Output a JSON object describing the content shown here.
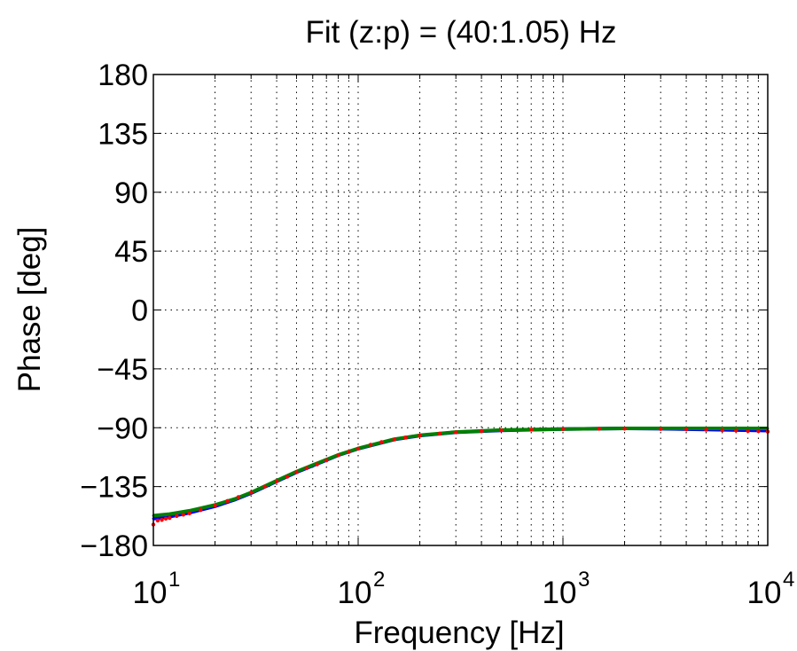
{
  "chart_data": {
    "type": "line",
    "title": "Fit (z:p) = (40:1.05) Hz",
    "xlabel": "Frequency [Hz]",
    "ylabel": "Phase [deg]",
    "xscale": "log",
    "xlim": [
      10,
      10000
    ],
    "ylim": [
      -180,
      180
    ],
    "grid": true,
    "yticks": [
      180,
      135,
      90,
      45,
      0,
      -45,
      -90,
      -135,
      -180
    ],
    "ytick_labels": [
      "180",
      "135",
      "90",
      "45",
      "0",
      "−45",
      "−90",
      "−135",
      "−180"
    ],
    "xticks": [
      {
        "base": "10",
        "exp": "1",
        "value": 10
      },
      {
        "base": "10",
        "exp": "2",
        "value": 100
      },
      {
        "base": "10",
        "exp": "3",
        "value": 1000
      },
      {
        "base": "10",
        "exp": "4",
        "value": 10000
      }
    ],
    "series": [
      {
        "color": "#0000ff",
        "style": "line",
        "x": [
          10,
          12,
          15,
          20,
          25,
          30,
          40,
          50,
          60,
          80,
          100,
          150,
          200,
          300,
          500,
          1000,
          2000,
          3000,
          5000,
          7000,
          10000
        ],
        "y": [
          -159.5,
          -158,
          -155,
          -150,
          -145,
          -140,
          -131,
          -124,
          -119,
          -111,
          -106,
          -99,
          -96,
          -93.5,
          -92,
          -91,
          -90.5,
          -90.8,
          -91.3,
          -91.8,
          -92.2
        ]
      },
      {
        "color": "#008000",
        "style": "line",
        "x": [
          10,
          12,
          15,
          20,
          25,
          30,
          40,
          50,
          60,
          80,
          100,
          150,
          200,
          300,
          500,
          1000,
          2000,
          3000,
          5000,
          7000,
          10000
        ],
        "y": [
          -157.2,
          -156,
          -153.5,
          -149,
          -144.5,
          -139.5,
          -130.5,
          -123.5,
          -118.5,
          -110.8,
          -105.8,
          -98.8,
          -95.8,
          -93.3,
          -91.8,
          -91,
          -90.5,
          -90.5,
          -90.5,
          -90.5,
          -90.5
        ]
      },
      {
        "color": "#ff0000",
        "style": "dots",
        "x": [
          10,
          10.5,
          11,
          11.5,
          12,
          13,
          14,
          15,
          17,
          20,
          23,
          26,
          30,
          35,
          40,
          45,
          50,
          56,
          63,
          70,
          80,
          90,
          100,
          115,
          130,
          150,
          170,
          200,
          250,
          300,
          400,
          500,
          700,
          1000,
          1500,
          2000,
          3000,
          4000,
          5000,
          6000,
          7000,
          8000,
          9000,
          10000
        ],
        "y": [
          -164,
          -161,
          -160.5,
          -159.5,
          -159,
          -157.5,
          -156.5,
          -155.5,
          -153,
          -149.5,
          -146,
          -143,
          -139.5,
          -135,
          -131,
          -127.5,
          -124,
          -121,
          -118,
          -115,
          -111,
          -108.5,
          -106,
          -103,
          -101,
          -99,
          -97.5,
          -96,
          -94.5,
          -93.5,
          -92.5,
          -92,
          -91.5,
          -91,
          -90.8,
          -90.7,
          -91,
          -91.3,
          -91.6,
          -92,
          -92.2,
          -92.5,
          -92.7,
          -93
        ]
      }
    ]
  }
}
